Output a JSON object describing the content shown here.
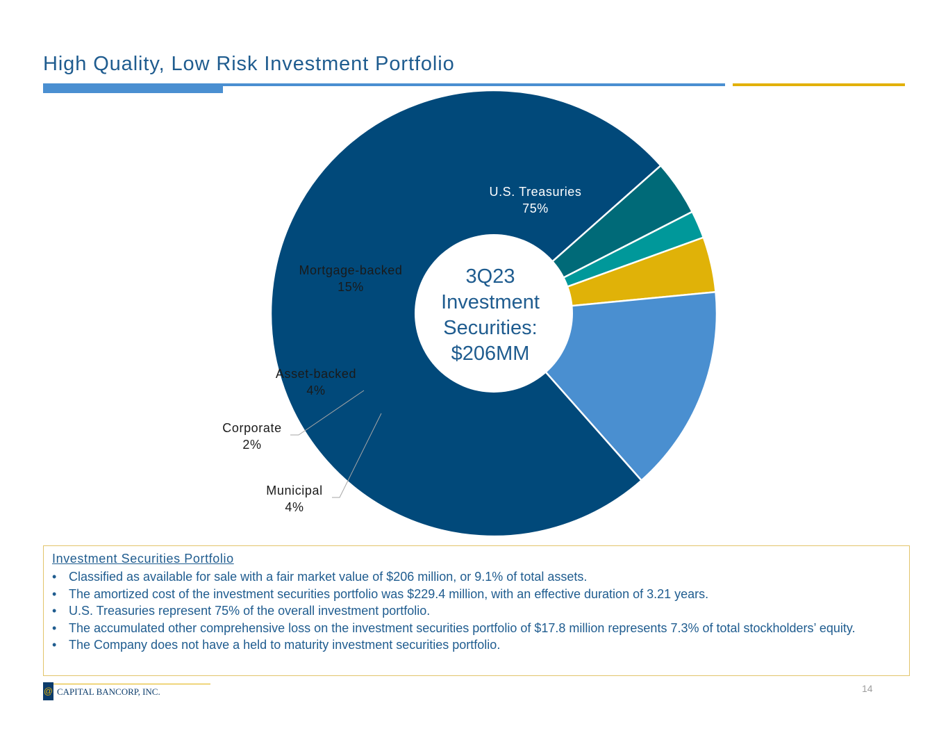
{
  "title": "High Quality, Low Risk Investment Portfolio",
  "chart_data": {
    "type": "pie",
    "style": "donut",
    "title": "3Q23 Investment Securities: $206MM",
    "center_label": [
      "3Q23",
      "Investment",
      "Securities:",
      "$206MM"
    ],
    "categories": [
      "U.S. Treasuries",
      "Municipal",
      "Corporate",
      "Asset-backed",
      "Mortgage-backed"
    ],
    "values": [
      75,
      4,
      2,
      4,
      15
    ],
    "value_labels": [
      "75%",
      "4%",
      "2%",
      "4%",
      "15%"
    ],
    "colors": [
      "#01497A",
      "#006A78",
      "#00989A",
      "#E0B208",
      "#4A8FD0"
    ],
    "legend": "none"
  },
  "info_box": {
    "heading": "Investment Securities Portfolio",
    "bullets": [
      "Classified as available for sale with a fair market value of $206 million, or 9.1% of total assets.",
      "The amortized cost of the investment securities portfolio was $229.4 million, with an effective duration of 3.21 years.",
      "U.S. Treasuries represent 75% of the overall investment portfolio.",
      "The accumulated other comprehensive loss on the investment securities portfolio of $17.8 million represents 7.3% of total stockholders’ equity.",
      "The Company does not have a held to maturity investment securities portfolio."
    ]
  },
  "footer": {
    "company": "CAPITAL BANCORP, INC.",
    "page_number": "14"
  }
}
